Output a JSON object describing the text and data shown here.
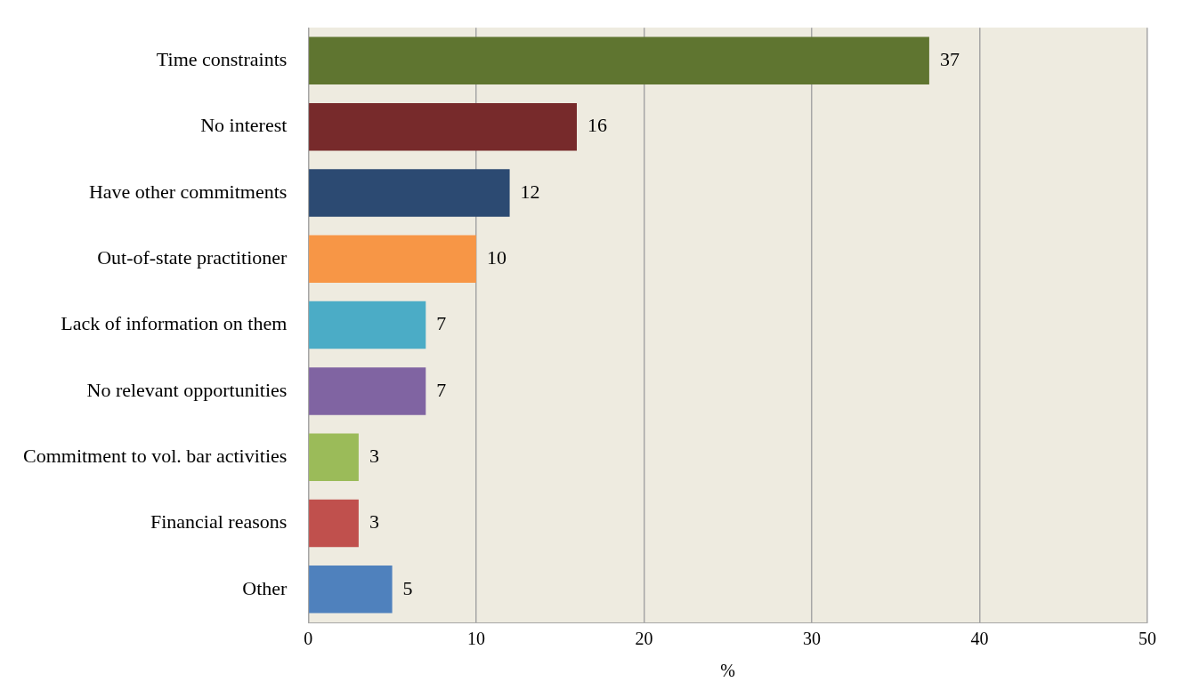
{
  "chart_data": {
    "type": "bar",
    "orientation": "horizontal",
    "xlabel": "%",
    "categories": [
      "Time constraints",
      "No interest",
      "Have other commitments",
      "Out-of-state practitioner",
      "Lack of information on them",
      "No relevant opportunities",
      "Commitment to vol. bar activities",
      "Financial reasons",
      "Other"
    ],
    "values": [
      37,
      16,
      12,
      10,
      7,
      7,
      3,
      3,
      5
    ],
    "colors": [
      "#5f7530",
      "#772a2b",
      "#2c4a72",
      "#f79646",
      "#4bacc6",
      "#8064a2",
      "#9bbb59",
      "#c0504d",
      "#4f81bd"
    ],
    "xlim": [
      0,
      50
    ],
    "xticks": [
      0,
      10,
      20,
      30,
      40,
      50
    ],
    "grid": "x",
    "data_labels": true,
    "legend": false
  }
}
